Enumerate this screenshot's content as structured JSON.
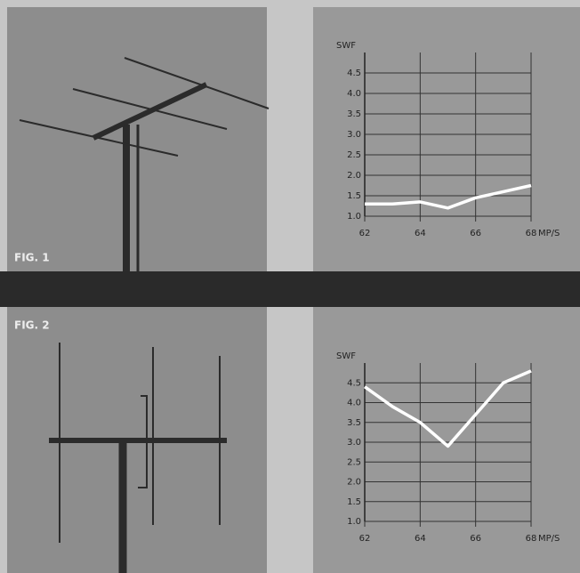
{
  "figure_labels": [
    "FIG. 1",
    "FIG. 2"
  ],
  "chart_data": [
    {
      "type": "line",
      "y_label": "SWF",
      "x_label": "MP/S",
      "x": [
        62,
        63,
        64,
        65,
        66,
        67,
        68
      ],
      "series": [
        {
          "color": "#ffffff",
          "values": [
            1.3,
            1.3,
            1.35,
            1.2,
            1.45,
            1.6,
            1.75
          ]
        }
      ],
      "xlim": [
        62,
        68
      ],
      "xticks": [
        62,
        64,
        66,
        68
      ],
      "ylim": [
        1,
        5
      ],
      "yticks": [
        {
          "value": 1,
          "label": "1.0"
        },
        {
          "value": 1.5,
          "label": "1.5"
        },
        {
          "value": 2,
          "label": "2.0"
        },
        {
          "value": 2.5,
          "label": "2.5"
        },
        {
          "value": 3,
          "label": "3.0"
        },
        {
          "value": 3.5,
          "label": "3.5"
        },
        {
          "value": 4,
          "label": "4.0"
        },
        {
          "value": 4.5,
          "label": "4.5"
        }
      ],
      "grid": true
    },
    {
      "type": "line",
      "y_label": "SWF",
      "x_label": "MP/S",
      "x": [
        62,
        63,
        64,
        65,
        66,
        67,
        68
      ],
      "series": [
        {
          "color": "#ffffff",
          "values": [
            4.4,
            3.9,
            3.5,
            2.9,
            3.7,
            4.5,
            4.8
          ]
        }
      ],
      "xlim": [
        62,
        68
      ],
      "xticks": [
        62,
        64,
        66,
        68
      ],
      "ylim": [
        1,
        5
      ],
      "yticks": [
        {
          "value": 1,
          "label": "1.0"
        },
        {
          "value": 1.5,
          "label": "1.5"
        },
        {
          "value": 2,
          "label": "2.0"
        },
        {
          "value": 2.5,
          "label": "2.5"
        },
        {
          "value": 3,
          "label": "3.0"
        },
        {
          "value": 3.5,
          "label": "3.5"
        },
        {
          "value": 4,
          "label": "4.0"
        },
        {
          "value": 4.5,
          "label": "4.5"
        }
      ],
      "grid": true
    }
  ]
}
